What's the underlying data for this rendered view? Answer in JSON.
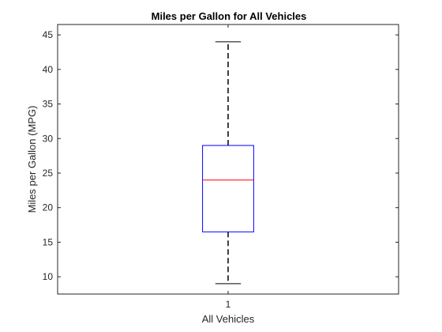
{
  "chart_data": {
    "type": "box",
    "title": "Miles per Gallon for All Vehicles",
    "xlabel": "All Vehicles",
    "ylabel": "Miles per Gallon (MPG)",
    "categories": [
      "1"
    ],
    "ylim": [
      7.5,
      46.5
    ],
    "yticks": [
      10,
      15,
      20,
      25,
      30,
      35,
      40,
      45
    ],
    "box": {
      "whisker_low": 9,
      "q1": 16.5,
      "median": 24,
      "q3": 29,
      "whisker_high": 44
    },
    "colors": {
      "box": "#0000ff",
      "median": "#ff0000",
      "whisker": "#000000",
      "axis": "#262626"
    },
    "grid": false
  }
}
